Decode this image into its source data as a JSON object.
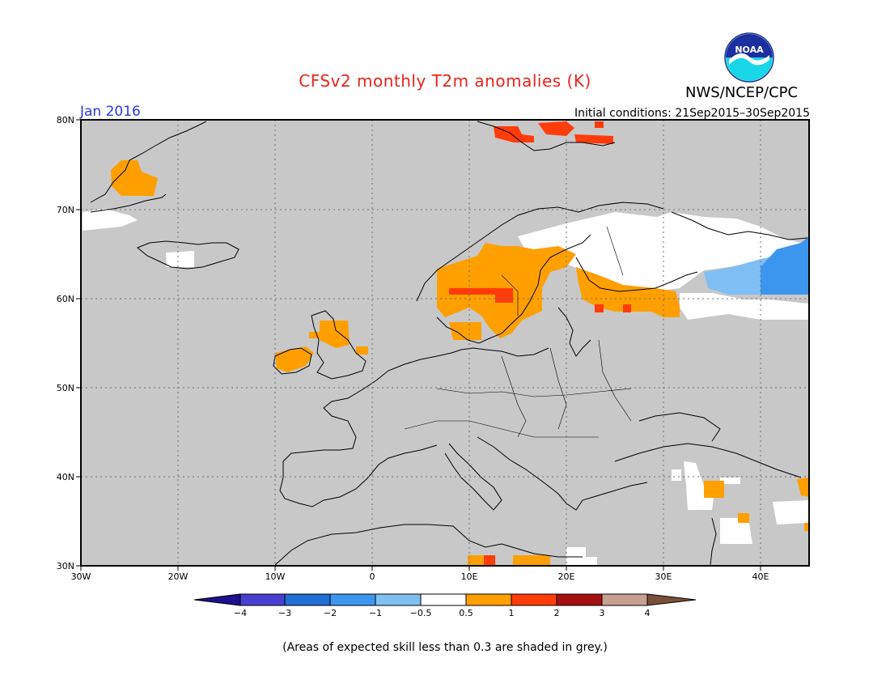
{
  "title": "CFSv2 monthly T2m anomalies (K)",
  "agency": "NWS/NCEP/CPC",
  "logo_text": "NOAA",
  "valid_month": "Jan 2016",
  "initial_conditions": "Initial conditions: 21Sep2015–30Sep2015",
  "lat_labels": [
    "80N",
    "70N",
    "60N",
    "50N",
    "40N",
    "30N"
  ],
  "lon_labels": [
    "30W",
    "20W",
    "10W",
    "0",
    "10E",
    "20E",
    "30E",
    "40E"
  ],
  "colorbar": {
    "labels": [
      "−4",
      "−3",
      "−2",
      "−1",
      "−0.5",
      "0.5",
      "1",
      "2",
      "3",
      "4"
    ],
    "colors": [
      "#1e0f8c",
      "#4a3fd1",
      "#1f6ed6",
      "#3d96ee",
      "#7fbff4",
      "#ffffff",
      "#ff9f00",
      "#ff3c0a",
      "#a50f0f",
      "#c8a092",
      "#7a4f3c"
    ]
  },
  "skill_note": "(Areas of expected skill less than 0.3 are shaded in grey.)",
  "colors": {
    "skill_grey": "#c8c8c8",
    "title_red": "#e8241b",
    "month_blue": "#2b3ad6"
  }
}
